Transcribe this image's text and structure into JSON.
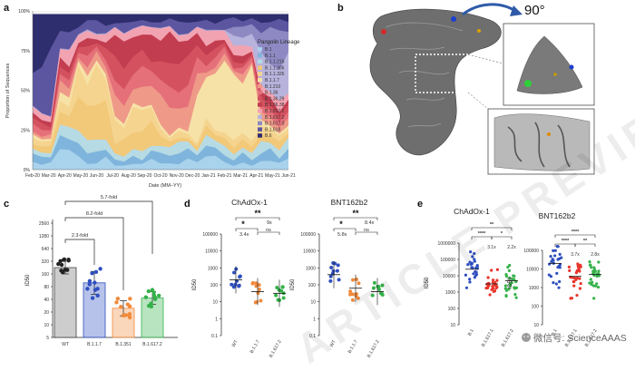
{
  "panels": {
    "a": "a",
    "b": "b",
    "c": "c",
    "d": "d",
    "e": "e"
  },
  "panel_a": {
    "ylabel": "Proportion of Sequences",
    "xlabel": "Date (MM–YY)",
    "yticks": [
      "0%",
      "25%",
      "50%",
      "75%",
      "100%"
    ],
    "xticks": [
      "Feb-20",
      "Mar-20",
      "Apr-20",
      "May-20",
      "Jun-20",
      "Jul-20",
      "Aug-20",
      "Sep-20",
      "Oct-20",
      "Nov-20",
      "Dec-20",
      "Jan-21",
      "Feb-21",
      "Mar-21",
      "Apr-21",
      "May-21",
      "Jun-21"
    ],
    "legend_title": "Pangolin Lineage",
    "lineages": [
      {
        "name": "B.1",
        "color": "#a9d2ec"
      },
      {
        "name": "B.1.1",
        "color": "#7fb5dc"
      },
      {
        "name": "B.1.1.216",
        "color": "#b7dbe4"
      },
      {
        "name": "B.1.1.306",
        "color": "#f2c879"
      },
      {
        "name": "B.1.1.326",
        "color": "#f5d48f"
      },
      {
        "name": "B.1.1.7",
        "color": "#f6e2a7"
      },
      {
        "name": "B.1.210",
        "color": "#ef9a88"
      },
      {
        "name": "B.1.36",
        "color": "#e5707a"
      },
      {
        "name": "B.1.36.29",
        "color": "#d4525f"
      },
      {
        "name": "B.1.36.38",
        "color": "#c23d4f"
      },
      {
        "name": "B.1.617.1",
        "color": "#f2a3b2"
      },
      {
        "name": "B.1.617.2",
        "color": "#b7b3dc"
      },
      {
        "name": "B.1.617.3",
        "color": "#8f89c3"
      },
      {
        "name": "B.1.618",
        "color": "#5c56a0"
      },
      {
        "name": "B.6",
        "color": "#2e2d6e"
      }
    ]
  },
  "panel_b": {
    "rotation": "90°"
  },
  "panel_c": {
    "ylabel": "ID50",
    "yticks": [
      "5",
      "10",
      "20",
      "40",
      "80",
      "160",
      "320",
      "640",
      "1280",
      "2560"
    ],
    "groups": [
      "WT",
      "B.1.1.7",
      "B.1.351",
      "B.1.617.2"
    ],
    "colors": [
      "#c8c8c8",
      "#2f4fbf",
      "#f08a3c",
      "#35b24a"
    ],
    "fold_labels": [
      "5.7-fold",
      "8.2-fold",
      "2.3-fold"
    ]
  },
  "panel_d": {
    "left_title": "ChAdOx-1",
    "right_title": "BNT162b2",
    "ylabel": "ID50",
    "yticks": [
      "0.1",
      "1",
      "10",
      "100",
      "1000",
      "10000",
      "100000"
    ],
    "groups": [
      "WT",
      "B.1.1.7",
      "B.1.617.2"
    ],
    "left_annotations": {
      "top": "**",
      "star": "*",
      "fold_top": "9x",
      "fold_left": "3.4x",
      "ns": "ns"
    },
    "right_annotations": {
      "top": "**",
      "star": "*",
      "fold_top": "8.4x",
      "fold_left": "5.8x",
      "ns": "ns"
    }
  },
  "panel_e": {
    "left_title": "ChAdOx-1",
    "right_title": "BNT162b2",
    "ylabel": "ID50",
    "left_yticks": [
      "10",
      "100",
      "1000",
      "10000",
      "100000",
      "1000000"
    ],
    "right_yticks": [
      "10",
      "100",
      "1000",
      "10000",
      "100000"
    ],
    "groups": [
      "B.1",
      "B.1.617.1",
      "B.1.617.2"
    ],
    "left_annotations": {
      "a": "**",
      "b": "****",
      "c": "*",
      "f1": "3.1x",
      "f2": "2.2x"
    },
    "right_annotations": {
      "a": "****",
      "b": "****",
      "c": "**",
      "f1": "3.7x",
      "f2": "2.8x"
    }
  },
  "watermark": "ARTICLE PREVIEW",
  "wechat_credit": "微信号: ScienceAAAS"
}
